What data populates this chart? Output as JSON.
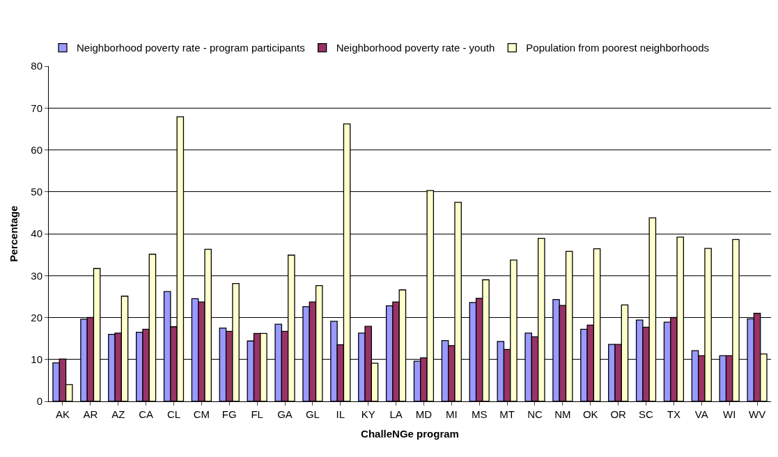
{
  "chart_data": {
    "type": "bar",
    "xlabel": "ChalleNGe program",
    "ylabel": "Percentage",
    "categories": [
      "AK",
      "AR",
      "AZ",
      "CA",
      "CL",
      "CM",
      "FG",
      "FL",
      "GA",
      "GL",
      "IL",
      "KY",
      "LA",
      "MD",
      "MI",
      "MS",
      "MT",
      "NC",
      "NM",
      "OK",
      "OR",
      "SC",
      "TX",
      "VA",
      "WI",
      "WV"
    ],
    "series": [
      {
        "name": "Neighborhood poverty rate - program participants",
        "color": "#9999ff",
        "values": [
          9.2,
          19.6,
          16.0,
          16.5,
          26.2,
          24.5,
          17.5,
          14.4,
          18.4,
          22.6,
          19.1,
          16.3,
          22.8,
          9.6,
          14.5,
          23.6,
          14.3,
          16.3,
          24.3,
          17.2,
          13.6,
          19.4,
          18.9,
          12.1,
          10.9,
          19.7
        ]
      },
      {
        "name": "Neighborhood poverty rate - youth",
        "color": "#993366",
        "values": [
          10.1,
          20.0,
          16.3,
          17.2,
          17.8,
          23.7,
          16.7,
          16.2,
          16.7,
          23.7,
          13.5,
          17.9,
          23.7,
          10.4,
          13.3,
          24.6,
          12.4,
          15.4,
          22.9,
          18.2,
          13.6,
          17.7,
          20.0,
          10.9,
          10.9,
          21.0
        ]
      },
      {
        "name": "Population from poorest neighborhoods",
        "color": "#ffffcc",
        "values": [
          4.0,
          31.7,
          25.1,
          35.1,
          67.9,
          36.3,
          28.1,
          16.2,
          34.9,
          27.6,
          66.2,
          9.1,
          26.6,
          50.3,
          47.5,
          29.0,
          33.7,
          38.9,
          35.8,
          36.4,
          23.0,
          43.8,
          39.2,
          36.5,
          38.6,
          11.3
        ]
      }
    ],
    "ylim": [
      0,
      80
    ],
    "yticks": [
      0,
      10,
      20,
      30,
      40,
      50,
      60,
      70,
      80
    ],
    "grid": "y",
    "legend": "top left"
  }
}
